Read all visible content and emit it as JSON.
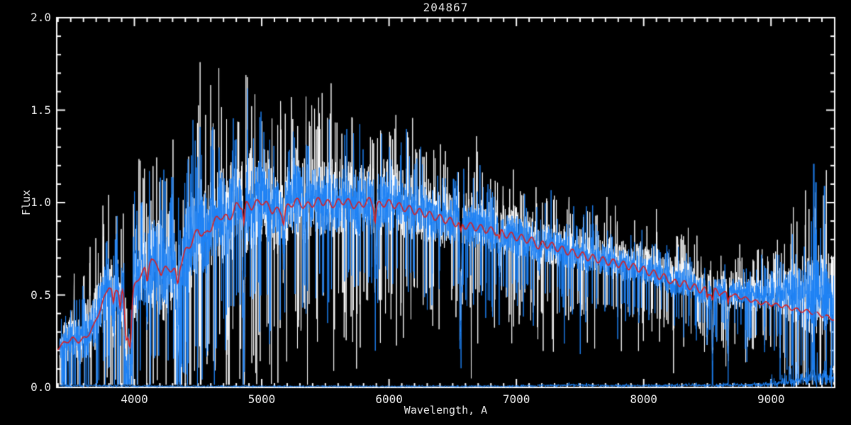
{
  "window": {
    "background": "#000000"
  },
  "chart_data": {
    "type": "line",
    "title": "204867",
    "xlabel": "Wavelength, A",
    "ylabel": "Flux",
    "xlim": [
      3390,
      9500
    ],
    "ylim": [
      0.0,
      2.0
    ],
    "x_major_ticks": [
      4000,
      5000,
      6000,
      7000,
      8000,
      9000
    ],
    "x_tick_labels": [
      "4000",
      "5000",
      "6000",
      "7000",
      "8000",
      "9000"
    ],
    "x_minor_step": 100,
    "y_major_ticks": [
      0.0,
      0.5,
      1.0,
      1.5,
      2.0
    ],
    "y_tick_labels": [
      "0.0",
      "0.5",
      "1.0",
      "1.5",
      "2.0"
    ],
    "y_minor_step": 0.1,
    "grid": false,
    "legend": null,
    "colors": {
      "background": "#000000",
      "axis": "#ffffff",
      "text": "#e9e9e9",
      "observed": "#1e82f5",
      "comparison": "#ffffff",
      "fit": "#dd1c1c"
    },
    "series": [
      {
        "name": "comparison spectrum",
        "style": "noisy-line",
        "color_key": "comparison"
      },
      {
        "name": "observed spectrum",
        "style": "noisy-line",
        "color_key": "observed"
      },
      {
        "name": "template fit",
        "style": "smooth-line",
        "color_key": "fit"
      },
      {
        "name": "error spectrum",
        "style": "noisy-line",
        "color_key": "observed"
      }
    ],
    "data_start_wavelength": 3412,
    "noise_seed": 20486,
    "sample_step": 1.6,
    "continuum_points": [
      [
        3390,
        0.21
      ],
      [
        3450,
        0.24
      ],
      [
        3510,
        0.265
      ],
      [
        3560,
        0.25
      ],
      [
        3620,
        0.27
      ],
      [
        3680,
        0.33
      ],
      [
        3740,
        0.44
      ],
      [
        3800,
        0.55
      ],
      [
        3850,
        0.52
      ],
      [
        3900,
        0.54
      ],
      [
        3950,
        0.53
      ],
      [
        4000,
        0.55
      ],
      [
        4060,
        0.62
      ],
      [
        4134,
        0.7
      ],
      [
        4212,
        0.62
      ],
      [
        4273,
        0.65
      ],
      [
        4330,
        0.62
      ],
      [
        4400,
        0.73
      ],
      [
        4450,
        0.79
      ],
      [
        4500,
        0.85
      ],
      [
        4560,
        0.82
      ],
      [
        4620,
        0.89
      ],
      [
        4680,
        0.93
      ],
      [
        4740,
        0.91
      ],
      [
        4800,
        0.98
      ],
      [
        4861,
        0.99
      ],
      [
        4920,
        0.98
      ],
      [
        5000,
        1.01
      ],
      [
        5080,
        0.96
      ],
      [
        5170,
        0.95
      ],
      [
        5260,
        1.01
      ],
      [
        5350,
        0.98
      ],
      [
        5450,
        1.01
      ],
      [
        5550,
        0.99
      ],
      [
        5650,
        1.01
      ],
      [
        5750,
        0.98
      ],
      [
        5850,
        1.01
      ],
      [
        5893,
        0.98
      ],
      [
        5980,
        1.0
      ],
      [
        6080,
        0.98
      ],
      [
        6180,
        0.96
      ],
      [
        6280,
        0.94
      ],
      [
        6380,
        0.92
      ],
      [
        6480,
        0.9
      ],
      [
        6563,
        0.88
      ],
      [
        6660,
        0.87
      ],
      [
        6760,
        0.855
      ],
      [
        6860,
        0.84
      ],
      [
        6960,
        0.82
      ],
      [
        7060,
        0.805
      ],
      [
        7160,
        0.785
      ],
      [
        7260,
        0.77
      ],
      [
        7360,
        0.745
      ],
      [
        7460,
        0.725
      ],
      [
        7560,
        0.705
      ],
      [
        7660,
        0.69
      ],
      [
        7760,
        0.675
      ],
      [
        7860,
        0.66
      ],
      [
        7960,
        0.645
      ],
      [
        8060,
        0.62
      ],
      [
        8160,
        0.595
      ],
      [
        8260,
        0.57
      ],
      [
        8360,
        0.55
      ],
      [
        8420,
        0.535
      ],
      [
        8500,
        0.52
      ],
      [
        8600,
        0.515
      ],
      [
        8700,
        0.51
      ],
      [
        8800,
        0.5
      ],
      [
        8900,
        0.495
      ],
      [
        9000,
        0.5
      ],
      [
        9100,
        0.5
      ],
      [
        9200,
        0.5
      ],
      [
        9300,
        0.5
      ],
      [
        9400,
        0.5
      ],
      [
        9500,
        0.49
      ]
    ],
    "noise_sigma_points": [
      [
        3400,
        0.055
      ],
      [
        3600,
        0.08
      ],
      [
        3800,
        0.11
      ],
      [
        4000,
        0.13
      ],
      [
        4200,
        0.15
      ],
      [
        4500,
        0.15
      ],
      [
        4800,
        0.145
      ],
      [
        5100,
        0.135
      ],
      [
        5400,
        0.125
      ],
      [
        5700,
        0.115
      ],
      [
        6000,
        0.105
      ],
      [
        6300,
        0.095
      ],
      [
        6600,
        0.085
      ],
      [
        6900,
        0.075
      ],
      [
        7200,
        0.068
      ],
      [
        7500,
        0.062
      ],
      [
        7800,
        0.058
      ],
      [
        8100,
        0.055
      ],
      [
        8400,
        0.052
      ],
      [
        8700,
        0.05
      ],
      [
        9000,
        0.055
      ],
      [
        9100,
        0.07
      ],
      [
        9200,
        0.1
      ],
      [
        9300,
        0.12
      ],
      [
        9400,
        0.12
      ],
      [
        9500,
        0.11
      ]
    ],
    "absorption_lines": [
      {
        "wavelength": 3835,
        "depth": 0.3,
        "sigma": 7,
        "fit_depth": 0.15
      },
      {
        "wavelength": 3889,
        "depth": 0.32,
        "sigma": 7,
        "fit_depth": 0.18
      },
      {
        "wavelength": 3933,
        "depth": 0.85,
        "sigma": 11,
        "fit_depth": 0.38
      },
      {
        "wavelength": 3950,
        "depth": 0.55,
        "sigma": 14,
        "fit_depth": 0.25
      },
      {
        "wavelength": 3968,
        "depth": 0.88,
        "sigma": 11,
        "fit_depth": 0.45
      },
      {
        "wavelength": 4101,
        "depth": 0.42,
        "sigma": 8,
        "fit_depth": 0.14
      },
      {
        "wavelength": 4340,
        "depth": 0.42,
        "sigma": 8,
        "fit_depth": 0.12
      },
      {
        "wavelength": 4861,
        "depth": 0.88,
        "sigma": 6,
        "fit_depth": 0.1
      },
      {
        "wavelength": 5172,
        "depth": 0.2,
        "sigma": 7,
        "fit_depth": 0.06
      },
      {
        "wavelength": 5890,
        "depth": 0.32,
        "sigma": 6,
        "fit_depth": 0.08
      },
      {
        "wavelength": 6563,
        "depth": 0.62,
        "sigma": 6,
        "fit_depth": 0.06
      },
      {
        "wavelength": 6867,
        "depth": 0.22,
        "sigma": 6,
        "fit_depth": 0.05
      },
      {
        "wavelength": 7180,
        "depth": 0.12,
        "sigma": 14,
        "fit_depth": 0.03
      },
      {
        "wavelength": 8230,
        "depth": 0.1,
        "sigma": 12,
        "fit_depth": 0.03
      },
      {
        "wavelength": 8498,
        "depth": 0.55,
        "sigma": 5,
        "fit_depth": 0.08
      },
      {
        "wavelength": 8542,
        "depth": 0.74,
        "sigma": 5,
        "fit_depth": 0.1
      },
      {
        "wavelength": 8662,
        "depth": 0.7,
        "sigma": 5,
        "fit_depth": 0.1
      }
    ],
    "emission_features": [
      {
        "wavelength": 7600,
        "amplitude": 0.15,
        "sigma": 7
      }
    ],
    "fit_offset_points": [
      [
        3390,
        0
      ],
      [
        8600,
        0
      ],
      [
        8800,
        -0.02
      ],
      [
        9000,
        -0.05
      ],
      [
        9100,
        -0.06
      ],
      [
        9200,
        -0.08
      ],
      [
        9300,
        -0.09
      ],
      [
        9400,
        -0.11
      ],
      [
        9500,
        -0.12
      ]
    ],
    "fit_wiggle": {
      "amplitude": 0.02,
      "period": 80
    },
    "comparison_offset": 0.012,
    "comparison_extra_offset_range": [
      7900,
      8450
    ],
    "comparison_extra_offset": 0.03,
    "comparison_noise_scale": 1.35,
    "error_level_points": [
      [
        3400,
        0.009
      ],
      [
        3700,
        0.009
      ],
      [
        4000,
        0.007
      ],
      [
        4500,
        0.006
      ],
      [
        5000,
        0.006
      ],
      [
        5500,
        0.006
      ],
      [
        6000,
        0.006
      ],
      [
        6500,
        0.006
      ],
      [
        7000,
        0.007
      ],
      [
        7550,
        0.013
      ],
      [
        7620,
        0.01
      ],
      [
        8000,
        0.009
      ],
      [
        8300,
        0.011
      ],
      [
        8600,
        0.012
      ],
      [
        8900,
        0.015
      ],
      [
        9050,
        0.022
      ],
      [
        9150,
        0.03
      ],
      [
        9250,
        0.045
      ],
      [
        9350,
        0.055
      ],
      [
        9420,
        0.05
      ],
      [
        9500,
        0.045
      ]
    ],
    "spikes": [
      {
        "wavelength": 9336,
        "from": 0.3,
        "to": 1.21
      },
      {
        "wavelength": 9353,
        "from": 0.33,
        "to": 1.11
      },
      {
        "wavelength": 9420,
        "from": 0.31,
        "to": 1.09
      }
    ]
  }
}
